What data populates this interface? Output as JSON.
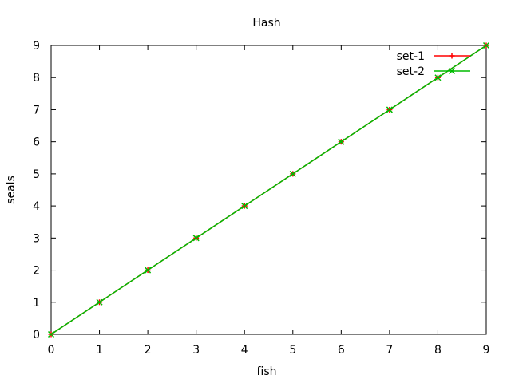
{
  "chart_data": {
    "type": "line",
    "title": "Hash",
    "xlabel": "fish",
    "ylabel": "seals",
    "xlim": [
      0,
      9
    ],
    "ylim": [
      0,
      9
    ],
    "xticks": [
      0,
      1,
      2,
      3,
      4,
      5,
      6,
      7,
      8,
      9
    ],
    "yticks": [
      0,
      1,
      2,
      3,
      4,
      5,
      6,
      7,
      8,
      9
    ],
    "grid": false,
    "legend_position": "top-right",
    "series": [
      {
        "name": "set-1",
        "color": "#ff0000",
        "marker": "plus",
        "x": [
          0,
          1,
          2,
          3,
          4,
          5,
          6,
          7,
          8,
          9
        ],
        "y": [
          0,
          1,
          2,
          3,
          4,
          5,
          6,
          7,
          8,
          9
        ]
      },
      {
        "name": "set-2",
        "color": "#00bb00",
        "marker": "x",
        "x": [
          0,
          1,
          2,
          3,
          4,
          5,
          6,
          7,
          8,
          9
        ],
        "y": [
          0,
          1,
          2,
          3,
          4,
          5,
          6,
          7,
          8,
          9
        ]
      }
    ]
  }
}
